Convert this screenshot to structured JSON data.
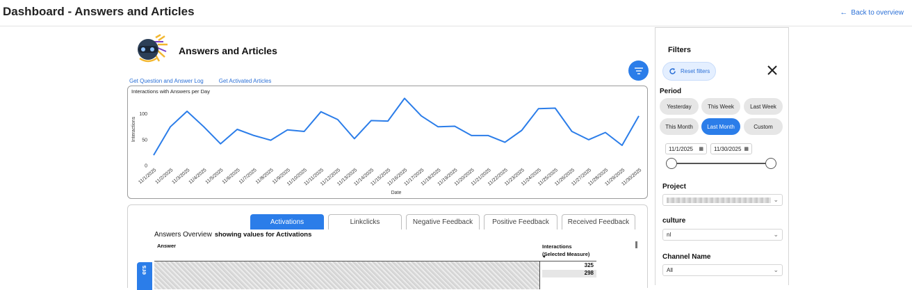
{
  "header": {
    "title": "Dashboard - Answers and Articles",
    "back_label": "Back to overview"
  },
  "report": {
    "title": "Answers and Articles",
    "links": [
      "Get Question and Answer Log",
      "Get Activated Articles"
    ]
  },
  "chart_data": {
    "type": "line",
    "title": "Interactions with Answers per Day",
    "xlabel": "Date",
    "ylabel": "Interactions",
    "ylim": [
      0,
      140
    ],
    "yticks": [
      0,
      50,
      100
    ],
    "x": [
      "11/1/2025",
      "11/2/2025",
      "11/3/2025",
      "11/4/2025",
      "11/5/2025",
      "11/6/2025",
      "11/7/2025",
      "11/8/2025",
      "11/9/2025",
      "11/10/2025",
      "11/11/2025",
      "11/12/2025",
      "11/13/2025",
      "11/14/2025",
      "11/15/2025",
      "11/16/2025",
      "11/17/2025",
      "11/18/2025",
      "11/19/2025",
      "11/20/2025",
      "11/21/2025",
      "11/22/2025",
      "11/23/2025",
      "11/24/2025",
      "11/25/2025",
      "11/26/2025",
      "11/27/2025",
      "11/28/2025",
      "11/29/2025",
      "11/30/2025"
    ],
    "series": [
      {
        "values": [
          20,
          75,
          105,
          75,
          42,
          70,
          58,
          49,
          69,
          66,
          104,
          89,
          52,
          87,
          86,
          130,
          96,
          75,
          76,
          58,
          58,
          45,
          68,
          110,
          111,
          66,
          50,
          64,
          39,
          96
        ],
        "color": "#2b7de9"
      }
    ],
    "grid": false,
    "legend": "none"
  },
  "tabs": [
    "Activations",
    "Linkclicks",
    "Negative Feedback",
    "Positive Feedback",
    "Received Feedback"
  ],
  "active_tab": 0,
  "table": {
    "title": "Answers Overview",
    "subtitle": "showing values for Activations",
    "col_answer": "Answer",
    "col_interactions_1": "Interactions",
    "col_interactions_2": "(Selected Measure)",
    "values": [
      "325",
      "298"
    ],
    "side_tab": "ers"
  },
  "filters": {
    "title": "Filters",
    "reset_label": "Reset filters",
    "period_label": "Period",
    "periods": [
      "Yesterday",
      "This Week",
      "Last Week",
      "This Month",
      "Last Month",
      "Custom"
    ],
    "active_period": "Last Month",
    "date_from": "11/1/2025",
    "date_to": "11/30/2025",
    "project_label": "Project",
    "culture_label": "culture",
    "culture_value": "nl",
    "channel_label": "Channel Name",
    "channel_value": "All"
  },
  "colors": {
    "accent": "#2b7de9",
    "link": "#2a6fd6"
  }
}
